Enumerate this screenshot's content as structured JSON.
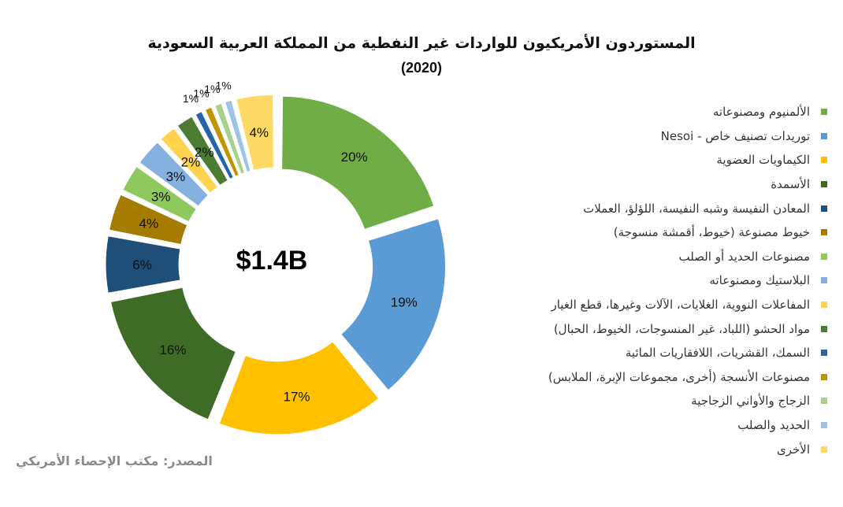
{
  "chart_data": {
    "type": "pie",
    "title": "المستوردون الأمريكيون للواردات غير النفطية من المملكة العربية السعودية",
    "subtitle": "(2020)",
    "center_label": "$1.4B",
    "categories": [
      "الألمنيوم ومصنوعاته",
      "توريدات تصنيف خاص - Nesoi",
      "الكيماويات العضوية",
      "الأسمدة",
      "المعادن النفيسة وشبه النفيسة، اللؤلؤ، العملات",
      "خيوط مصنوعة (خيوط، أقمشة منسوجة)",
      "مصنوعات الحديد أو الصلب",
      "البلاستيك ومصنوعاته",
      "المفاعلات النووية، الغلايات، الآلات وغيرها، قطع الغيار",
      "مواد الحشو (اللباد، غير المنسوجات، الخيوط، الحبال)",
      "السمك، القشريات، اللافقاريات المائية",
      "مصنوعات الأنسجة (أخرى، مجموعات الإبرة، الملابس)",
      "الزجاج والأواني الزجاجية",
      "الحديد والصلب",
      "الأخرى"
    ],
    "values": [
      20,
      19,
      17,
      16,
      6,
      4,
      3,
      3,
      2,
      2,
      1,
      1,
      1,
      1,
      4
    ],
    "data_labels": [
      "20%",
      "19%",
      "17%",
      "16%",
      "6%",
      "4%",
      "3%",
      "3%",
      "2%",
      "2%",
      "1%",
      "1%",
      "1%",
      "1%",
      "4%"
    ],
    "colors": [
      "#70ad47",
      "#5b9bd5",
      "#ffc000",
      "#3e6b26",
      "#1f4e79",
      "#a67c00",
      "#8fc95e",
      "#84b1e0",
      "#ffd34d",
      "#4b7c2f",
      "#2664a8",
      "#c09400",
      "#a9d18e",
      "#9dc3e6",
      "#ffd966"
    ],
    "legend_position": "right"
  },
  "source": "المصدر: مكتب الإحصاء الأمريكي"
}
